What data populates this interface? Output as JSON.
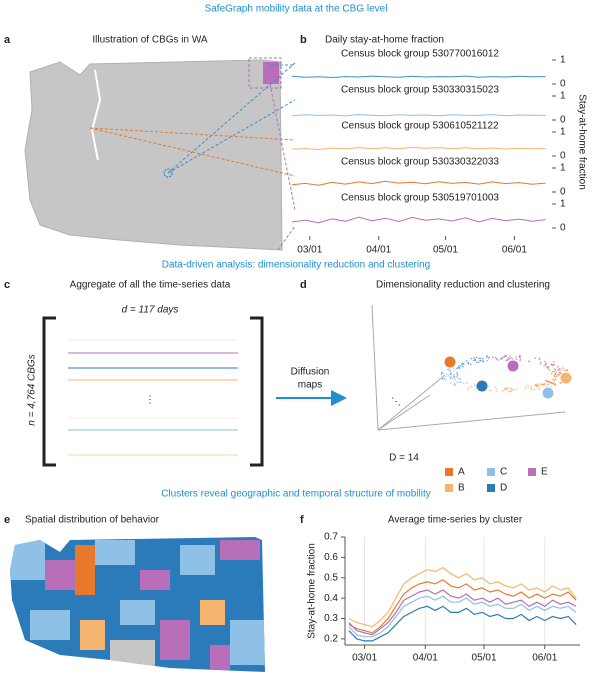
{
  "sections": [
    "SafeGraph mobility data at the CBG level",
    "Data-driven analysis: dimensionality reduction and clustering",
    "Clusters reveal geographic and temporal structure of mobility"
  ],
  "panel_a": {
    "letter": "a",
    "title": "Illustration of CBGs in WA"
  },
  "panel_c": {
    "letter": "c",
    "title": "Aggregate of all the time-series data",
    "columns": "d = 117 days",
    "rows": "n = 4,764 CBGs",
    "ellipsis": "⋮"
  },
  "arrow": [
    "Diffusion",
    "maps"
  ],
  "panel_d": {
    "letter": "d",
    "title": "Dimensionality reduction and clustering",
    "ellipsis": "⋱",
    "dimension": "D = 14",
    "legend": [
      {
        "name": "A",
        "color": "#e8782a"
      },
      {
        "name": "B",
        "color": "#f5b46f"
      },
      {
        "name": "C",
        "color": "#8ec1e5"
      },
      {
        "name": "D",
        "color": "#2b7bba"
      },
      {
        "name": "E",
        "color": "#b86eb8"
      }
    ]
  },
  "panel_e": {
    "letter": "e",
    "title": "Spatial distribution of behavior"
  },
  "chart_data": [
    {
      "type": "small-multiples",
      "letter": "b",
      "title": "Daily stay-at-home fraction",
      "ylabel": "Stay-at-home fraction",
      "x": [
        0,
        6,
        12,
        18,
        24,
        30,
        36,
        42,
        48,
        54,
        60,
        66,
        72,
        78,
        84,
        90,
        96,
        102,
        108,
        114
      ],
      "xlim": [
        0,
        116
      ],
      "xticks": [
        {
          "value": 8,
          "label": "03/01"
        },
        {
          "value": 39,
          "label": "04/01"
        },
        {
          "value": 69,
          "label": "05/01"
        },
        {
          "value": 100,
          "label": "06/01"
        }
      ],
      "ylim": [
        0,
        1
      ],
      "yticks": [
        0,
        1
      ],
      "series": [
        {
          "name": "Census block group 530770016012",
          "color": "#3b8fc4",
          "values": [
            0.32,
            0.28,
            0.3,
            0.27,
            0.31,
            0.29,
            0.33,
            0.3,
            0.28,
            0.32,
            0.29,
            0.31,
            0.3,
            0.33,
            0.28,
            0.31,
            0.29,
            0.32,
            0.3,
            0.31
          ]
        },
        {
          "name": "Census block group 530330315023",
          "color": "#8ec1e5",
          "values": [
            0.18,
            0.22,
            0.19,
            0.21,
            0.17,
            0.23,
            0.2,
            0.18,
            0.22,
            0.19,
            0.21,
            0.18,
            0.22,
            0.2,
            0.19,
            0.23,
            0.18,
            0.21,
            0.2,
            0.19
          ]
        },
        {
          "name": "Census block group 530610521122",
          "color": "#f5b46f",
          "values": [
            0.28,
            0.31,
            0.27,
            0.33,
            0.3,
            0.35,
            0.31,
            0.34,
            0.3,
            0.36,
            0.32,
            0.35,
            0.31,
            0.34,
            0.3,
            0.33,
            0.29,
            0.32,
            0.3,
            0.31
          ]
        },
        {
          "name": "Census block group 530330322033",
          "color": "#e8782a",
          "values": [
            0.3,
            0.36,
            0.28,
            0.4,
            0.33,
            0.42,
            0.35,
            0.45,
            0.37,
            0.41,
            0.34,
            0.43,
            0.36,
            0.4,
            0.33,
            0.42,
            0.35,
            0.39,
            0.32,
            0.37
          ]
        },
        {
          "name": "Census block group 530519701003",
          "color": "#b86eb8",
          "values": [
            0.25,
            0.33,
            0.22,
            0.38,
            0.28,
            0.45,
            0.3,
            0.41,
            0.27,
            0.44,
            0.32,
            0.38,
            0.29,
            0.42,
            0.26,
            0.4,
            0.31,
            0.37,
            0.28,
            0.35
          ]
        }
      ]
    },
    {
      "type": "line",
      "letter": "f",
      "title": "Average time-series by cluster",
      "ylabel": "Stay-at-home fraction",
      "x": [
        0,
        4,
        8,
        12,
        16,
        20,
        24,
        28,
        32,
        36,
        40,
        44,
        48,
        52,
        56,
        60,
        64,
        68,
        72,
        76,
        80,
        84,
        88,
        92,
        96,
        100,
        104,
        108,
        112,
        116
      ],
      "xlim": [
        -2,
        118
      ],
      "xticks": [
        {
          "value": 8,
          "label": "03/01"
        },
        {
          "value": 39,
          "label": "04/01"
        },
        {
          "value": 69,
          "label": "05/01"
        },
        {
          "value": 100,
          "label": "06/01"
        }
      ],
      "ylim": [
        0.17,
        0.7
      ],
      "yticks": [
        0.2,
        0.3,
        0.4,
        0.5,
        0.6,
        0.7
      ],
      "grid": "x",
      "series": [
        {
          "color": "#e8782a",
          "values": [
            0.27,
            0.25,
            0.24,
            0.23,
            0.26,
            0.3,
            0.36,
            0.42,
            0.45,
            0.47,
            0.48,
            0.47,
            0.49,
            0.46,
            0.45,
            0.47,
            0.44,
            0.45,
            0.43,
            0.44,
            0.42,
            0.41,
            0.43,
            0.4,
            0.42,
            0.4,
            0.42,
            0.41,
            0.43,
            0.39
          ]
        },
        {
          "color": "#f5b46f",
          "values": [
            0.3,
            0.28,
            0.27,
            0.26,
            0.29,
            0.33,
            0.4,
            0.47,
            0.5,
            0.52,
            0.54,
            0.53,
            0.55,
            0.52,
            0.5,
            0.52,
            0.49,
            0.5,
            0.47,
            0.48,
            0.46,
            0.45,
            0.47,
            0.44,
            0.45,
            0.43,
            0.46,
            0.44,
            0.45,
            0.4
          ]
        },
        {
          "color": "#8ec1e5",
          "values": [
            0.26,
            0.22,
            0.21,
            0.21,
            0.23,
            0.26,
            0.31,
            0.36,
            0.38,
            0.4,
            0.41,
            0.39,
            0.41,
            0.38,
            0.38,
            0.4,
            0.37,
            0.38,
            0.36,
            0.37,
            0.35,
            0.35,
            0.37,
            0.34,
            0.36,
            0.34,
            0.36,
            0.35,
            0.36,
            0.33
          ]
        },
        {
          "color": "#2b7bba",
          "values": [
            0.24,
            0.2,
            0.19,
            0.19,
            0.21,
            0.23,
            0.27,
            0.31,
            0.33,
            0.35,
            0.36,
            0.34,
            0.36,
            0.33,
            0.33,
            0.35,
            0.32,
            0.33,
            0.31,
            0.32,
            0.3,
            0.3,
            0.32,
            0.29,
            0.31,
            0.29,
            0.31,
            0.3,
            0.31,
            0.27
          ]
        },
        {
          "color": "#b86eb8",
          "values": [
            0.28,
            0.24,
            0.23,
            0.22,
            0.25,
            0.28,
            0.33,
            0.39,
            0.41,
            0.43,
            0.44,
            0.42,
            0.44,
            0.41,
            0.4,
            0.42,
            0.39,
            0.4,
            0.38,
            0.4,
            0.37,
            0.38,
            0.39,
            0.36,
            0.38,
            0.36,
            0.39,
            0.37,
            0.38,
            0.36
          ]
        }
      ]
    }
  ]
}
